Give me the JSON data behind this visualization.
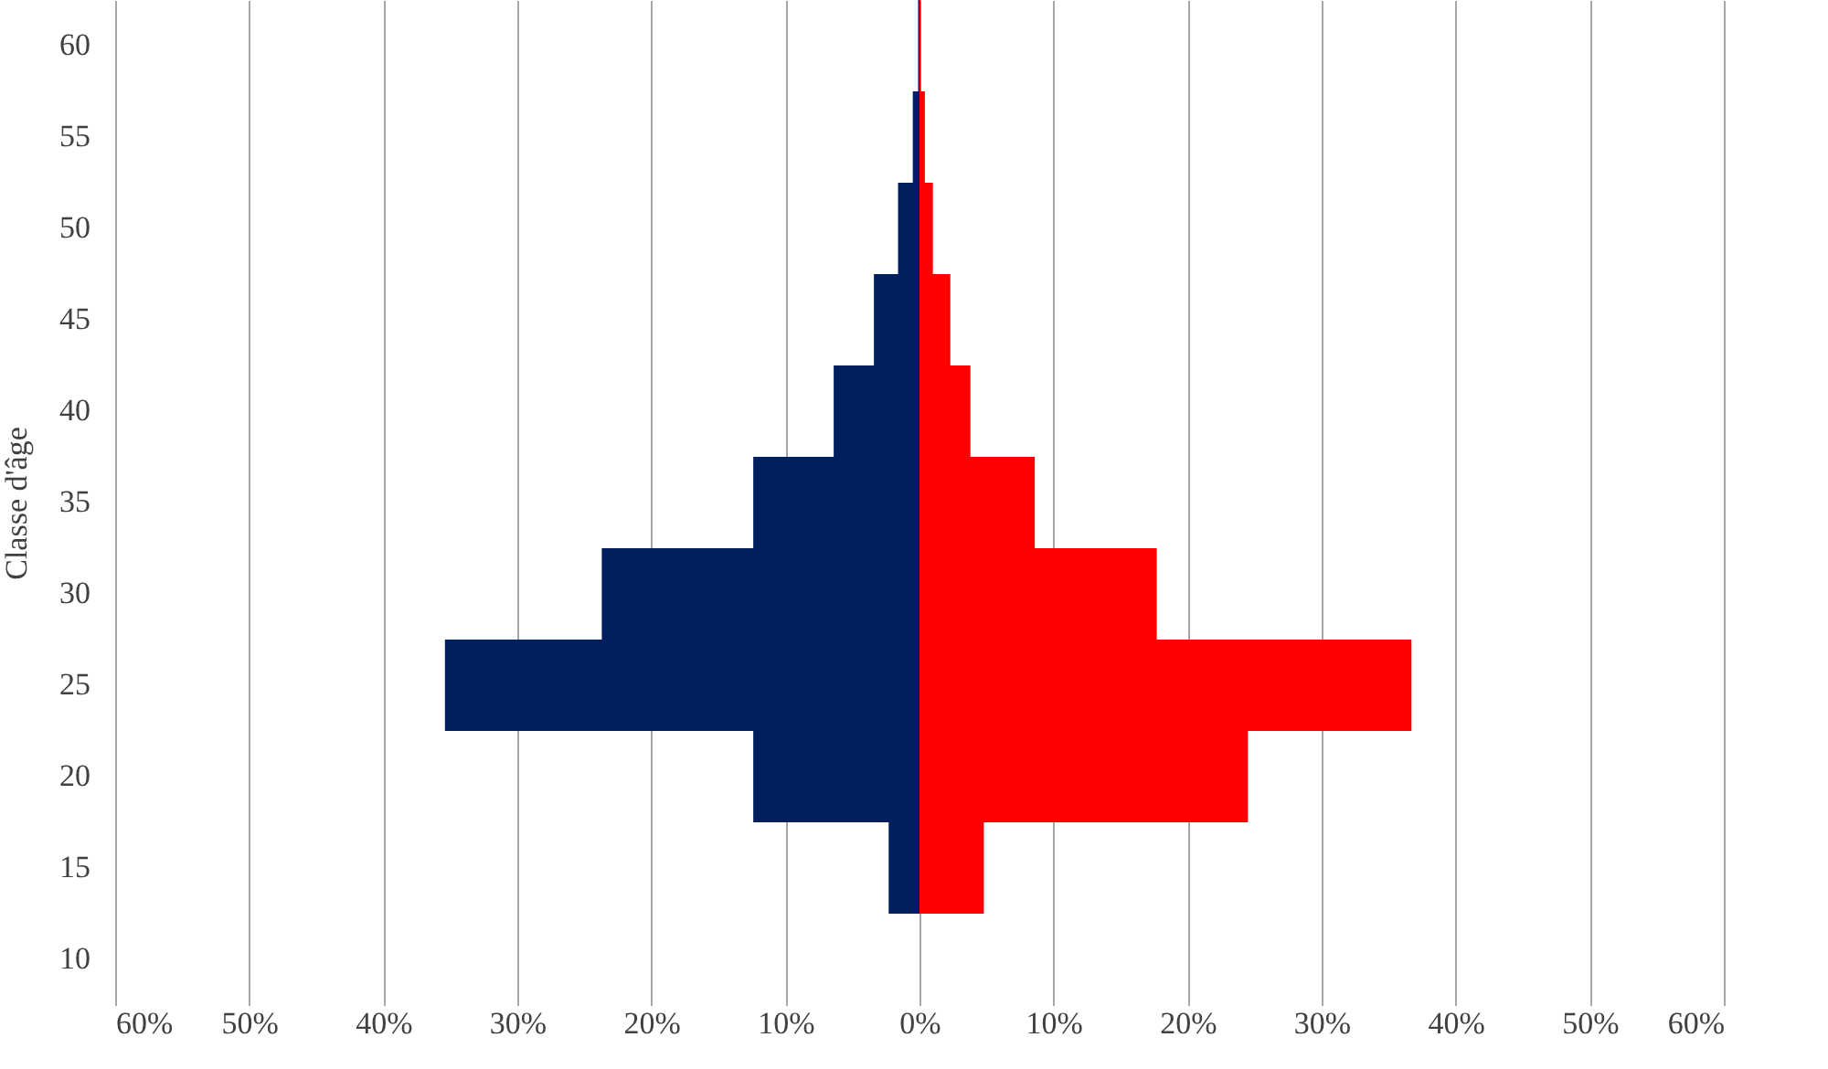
{
  "chart_data": {
    "type": "bar",
    "orientation": "horizontal",
    "stacked": true,
    "ylabel": "Classe d'âge",
    "categories": [
      "60",
      "55",
      "50",
      "45",
      "40",
      "35",
      "30",
      "25",
      "20",
      "15",
      "10"
    ],
    "series": [
      {
        "color": "#001f5f",
        "values": [
          -0.1,
          -0.5,
          -1.6,
          -3.4,
          -6.4,
          -12.4,
          -23.7,
          -35.4,
          -12.4,
          -2.3,
          0
        ]
      },
      {
        "color": "#ff0000",
        "values": [
          0.1,
          0.4,
          1.0,
          2.3,
          3.8,
          8.6,
          17.7,
          36.7,
          24.5,
          4.8,
          0
        ]
      }
    ],
    "xlim": [
      -60,
      60
    ],
    "xticks": [
      {
        "value": -60,
        "label": "60%"
      },
      {
        "value": -50,
        "label": "50%"
      },
      {
        "value": -40,
        "label": "40%"
      },
      {
        "value": -30,
        "label": "30%"
      },
      {
        "value": -20,
        "label": "20%"
      },
      {
        "value": -10,
        "label": "10%"
      },
      {
        "value": 0,
        "label": "0%"
      },
      {
        "value": 10,
        "label": "10%"
      },
      {
        "value": 20,
        "label": "20%"
      },
      {
        "value": 30,
        "label": "30%"
      },
      {
        "value": 40,
        "label": "40%"
      },
      {
        "value": 50,
        "label": "50%"
      },
      {
        "value": 60,
        "label": "60%"
      }
    ],
    "grid": "x",
    "legend": false
  }
}
